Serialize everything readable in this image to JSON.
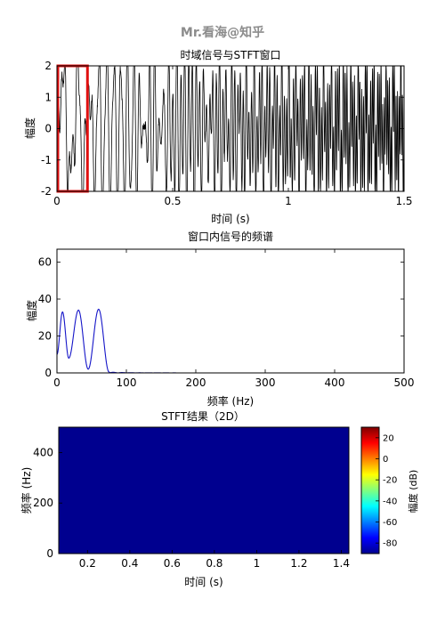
{
  "watermark": "Mr.看海@知乎",
  "chart_data": [
    {
      "type": "line",
      "title": "时域信号与STFT窗口",
      "xlabel": "时间 (s)",
      "ylabel": "幅度",
      "xlim": [
        0,
        1.5
      ],
      "ylim": [
        -2,
        2
      ],
      "xticks": [
        0,
        0.5,
        1,
        1.5
      ],
      "xtick_labels": [
        "0",
        "0.5",
        "1",
        "1.5"
      ],
      "yticks": [
        2,
        1,
        0,
        -1,
        -2
      ],
      "ytick_labels": [
        "2",
        "1",
        "0",
        "-1",
        "-2"
      ],
      "signal": "chirp-like oscillation with increasing frequency, amplitude approx 2 (clipped at ±2)",
      "window_highlight": {
        "x": [
          0,
          0.128
        ],
        "y": [
          -2,
          2
        ],
        "color": "#e01010"
      },
      "line_color": "#000000",
      "grid": false
    },
    {
      "type": "line",
      "title": "窗口内信号的频谱",
      "xlabel": "频率 (Hz)",
      "ylabel": "幅度",
      "xlim": [
        0,
        500
      ],
      "ylim": [
        0,
        67
      ],
      "xticks": [
        0,
        100,
        200,
        300,
        400,
        500
      ],
      "xtick_labels": [
        "0",
        "100",
        "200",
        "300",
        "400",
        "500"
      ],
      "yticks": [
        0,
        20,
        40,
        60
      ],
      "ytick_labels": [
        "0",
        "20",
        "40",
        "60"
      ],
      "peaks": [
        {
          "x": 8,
          "y": 33
        },
        {
          "x": 31,
          "y": 34
        },
        {
          "x": 60,
          "y": 34.5
        }
      ],
      "troughs": [
        {
          "x": 17,
          "y": 8
        },
        {
          "x": 45,
          "y": 2
        }
      ],
      "endpoints": [
        {
          "x": 0,
          "y": 10
        },
        {
          "x": 75,
          "y": 0.5
        }
      ],
      "line_color": "#1515c8",
      "grid": false
    },
    {
      "type": "heatmap",
      "title": "STFT结果（2D）",
      "xlabel": "时间 (s)",
      "ylabel": "频率 (Hz)",
      "xlim": [
        0.064,
        1.436
      ],
      "ylim": [
        0,
        500
      ],
      "xticks": [
        0.2,
        0.4,
        0.6,
        0.8,
        1,
        1.2,
        1.4
      ],
      "xtick_labels": [
        "0.2",
        "0.4",
        "0.6",
        "0.8",
        "1",
        "1.2",
        "1.4"
      ],
      "yticks": [
        0,
        200,
        400
      ],
      "ytick_labels": [
        "0",
        "200",
        "400"
      ],
      "fill_value_db": -90,
      "fill_color": "#00008f",
      "colorbar": {
        "label": "幅度 (dB)",
        "range": [
          -90,
          30
        ],
        "ticks": [
          20,
          0,
          -20,
          -40,
          -60,
          -80
        ],
        "tick_labels": [
          "20",
          "0",
          "-20",
          "-40",
          "-60",
          "-80"
        ],
        "colormap": "jet"
      }
    }
  ]
}
